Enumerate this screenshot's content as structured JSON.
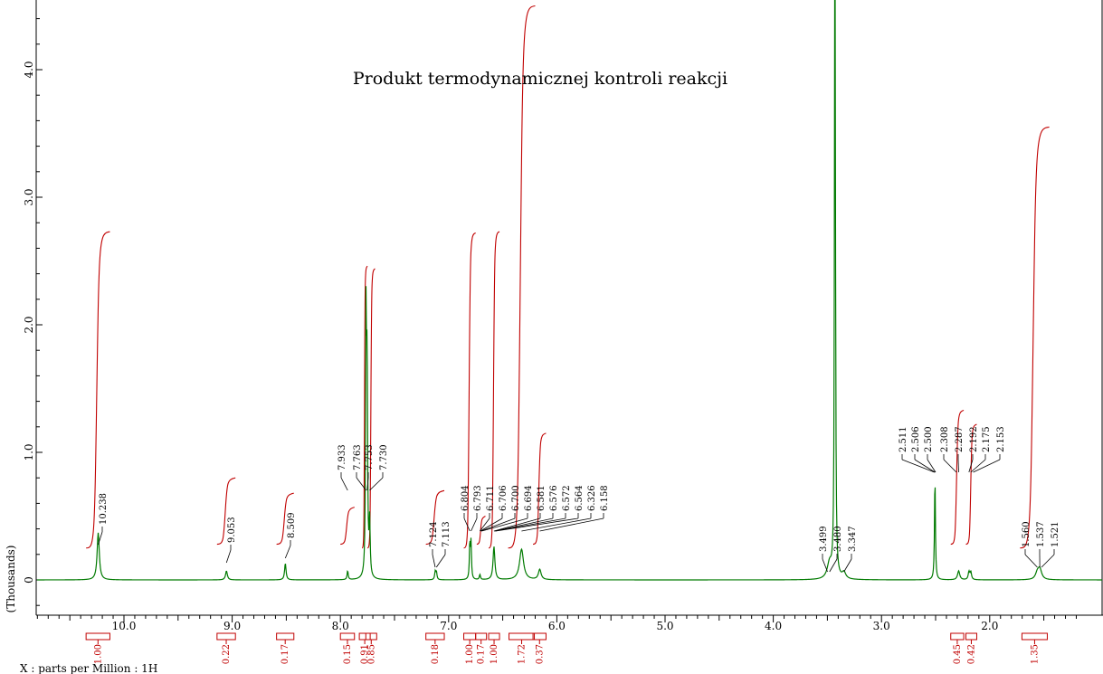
{
  "chart_data": {
    "type": "line",
    "title": "Produkt termodynamicznej kontroli reakcji",
    "xlabel": "X : parts per Million : 1H",
    "ylabel": "(Thousands)",
    "x_reversed": true,
    "xlim": [
      11.0,
      1.1
    ],
    "ylim": [
      -0.28,
      4.53
    ],
    "x_ticks": [
      "10.0",
      "9.0",
      "8.0",
      "7.0",
      "6.0",
      "5.0",
      "4.0",
      "3.0",
      "2.0"
    ],
    "y_ticks": [
      "0",
      "1.0",
      "2.0",
      "3.0",
      "4.0"
    ],
    "colors": {
      "spectrum": "#007a00",
      "integral": "#c00000",
      "axis": "#000000"
    },
    "series": [
      {
        "peaks": [
          {
            "ppm": 10.238,
            "height": 0.37,
            "width": 0.012
          },
          {
            "ppm": 9.053,
            "height": 0.07,
            "width": 0.01
          },
          {
            "ppm": 8.509,
            "height": 0.13,
            "width": 0.008
          },
          {
            "ppm": 7.933,
            "height": 0.07,
            "width": 0.006
          },
          {
            "ppm": 7.763,
            "height": 2.0,
            "width": 0.005
          },
          {
            "ppm": 7.753,
            "height": 1.6,
            "width": 0.005
          },
          {
            "ppm": 7.73,
            "height": 0.42,
            "width": 0.006
          },
          {
            "ppm": 7.124,
            "height": 0.06,
            "width": 0.006
          },
          {
            "ppm": 7.113,
            "height": 0.06,
            "width": 0.006
          },
          {
            "ppm": 6.804,
            "height": 0.28,
            "width": 0.005
          },
          {
            "ppm": 6.793,
            "height": 0.28,
            "width": 0.005
          },
          {
            "ppm": 6.711,
            "height": 0.04,
            "width": 0.006
          },
          {
            "ppm": 6.581,
            "height": 0.26,
            "width": 0.01
          },
          {
            "ppm": 6.326,
            "height": 0.24,
            "width": 0.022
          },
          {
            "ppm": 6.158,
            "height": 0.08,
            "width": 0.015
          },
          {
            "ppm": 3.43,
            "height": 8.0,
            "width": 0.004
          },
          {
            "ppm": 3.48,
            "height": 0.12,
            "width": 0.025
          },
          {
            "ppm": 3.347,
            "height": 0.05,
            "width": 0.02
          },
          {
            "ppm": 2.506,
            "height": 0.82,
            "width": 0.005
          },
          {
            "ppm": 2.287,
            "height": 0.07,
            "width": 0.012
          },
          {
            "ppm": 2.192,
            "height": 0.06,
            "width": 0.008
          },
          {
            "ppm": 2.175,
            "height": 0.06,
            "width": 0.008
          },
          {
            "ppm": 1.56,
            "height": 0.05,
            "width": 0.02
          },
          {
            "ppm": 1.537,
            "height": 0.08,
            "width": 0.02
          }
        ]
      }
    ],
    "peak_label_groups": [
      {
        "labels": [
          "10.238"
        ],
        "peak_ppm": [
          10.238
        ]
      },
      {
        "labels": [
          "9.053"
        ],
        "peak_ppm": [
          9.053
        ]
      },
      {
        "labels": [
          "8.509"
        ],
        "peak_ppm": [
          8.509
        ]
      },
      {
        "labels": [
          "7.933"
        ],
        "peak_ppm": [
          7.933
        ]
      },
      {
        "labels": [
          "7.763",
          "7.753",
          "7.730"
        ],
        "peak_ppm": [
          7.763,
          7.753,
          7.73
        ]
      },
      {
        "labels": [
          "7.124",
          "7.113"
        ],
        "peak_ppm": [
          7.124,
          7.113
        ]
      },
      {
        "labels": [
          "6.804",
          "6.793",
          "6.711",
          "6.706",
          "6.700",
          "6.694",
          "6.581",
          "6.576",
          "6.572",
          "6.564",
          "6.326",
          "6.158"
        ],
        "peak_ppm": [
          6.804,
          6.793,
          6.711,
          6.706,
          6.7,
          6.694,
          6.581,
          6.576,
          6.572,
          6.564,
          6.326,
          6.158
        ]
      },
      {
        "labels": [
          "3.499",
          "3.480",
          "3.347"
        ],
        "peak_ppm": [
          3.499,
          3.48,
          3.347
        ]
      },
      {
        "labels": [
          "2.511",
          "2.506",
          "2.500",
          "2.308",
          "2.287",
          "2.192",
          "2.175",
          "2.153"
        ],
        "peak_ppm": [
          2.511,
          2.506,
          2.5,
          2.308,
          2.287,
          2.192,
          2.175,
          2.153
        ]
      },
      {
        "labels": [
          "1.560",
          "1.537",
          "1.521"
        ],
        "peak_ppm": [
          1.56,
          1.537,
          1.521
        ]
      }
    ],
    "integrations": [
      {
        "value": "1.00",
        "from": 10.35,
        "to": 10.13,
        "integral_height": 2.73
      },
      {
        "value": "0.22",
        "from": 9.14,
        "to": 8.97,
        "integral_height": 0.8
      },
      {
        "value": "0.17",
        "from": 8.59,
        "to": 8.43,
        "integral_height": 0.68
      },
      {
        "value": "0.15",
        "from": 8.0,
        "to": 7.87,
        "integral_height": 0.57
      },
      {
        "value": "0.91",
        "from": 7.8,
        "to": 7.75,
        "integral_height": 2.46
      },
      {
        "value": "0.85",
        "from": 7.75,
        "to": 7.68,
        "integral_height": 2.44
      },
      {
        "value": "0.18",
        "from": 7.21,
        "to": 7.04,
        "integral_height": 0.7
      },
      {
        "value": "1.00",
        "from": 6.86,
        "to": 6.75,
        "integral_height": 2.72
      },
      {
        "value": "0.17",
        "from": 6.74,
        "to": 6.66,
        "integral_height": 0.5
      },
      {
        "value": "1.00",
        "from": 6.63,
        "to": 6.53,
        "integral_height": 2.73
      },
      {
        "value": "1.72",
        "from": 6.45,
        "to": 6.2,
        "integral_height": 4.5
      },
      {
        "value": "0.37",
        "from": 6.22,
        "to": 6.1,
        "integral_height": 1.15
      },
      {
        "value": "0.45",
        "from": 2.36,
        "to": 2.24,
        "integral_height": 1.33
      },
      {
        "value": "0.42",
        "from": 2.22,
        "to": 2.12,
        "integral_height": 1.22
      },
      {
        "value": "1.35",
        "from": 1.72,
        "to": 1.45,
        "integral_height": 3.55
      }
    ]
  }
}
